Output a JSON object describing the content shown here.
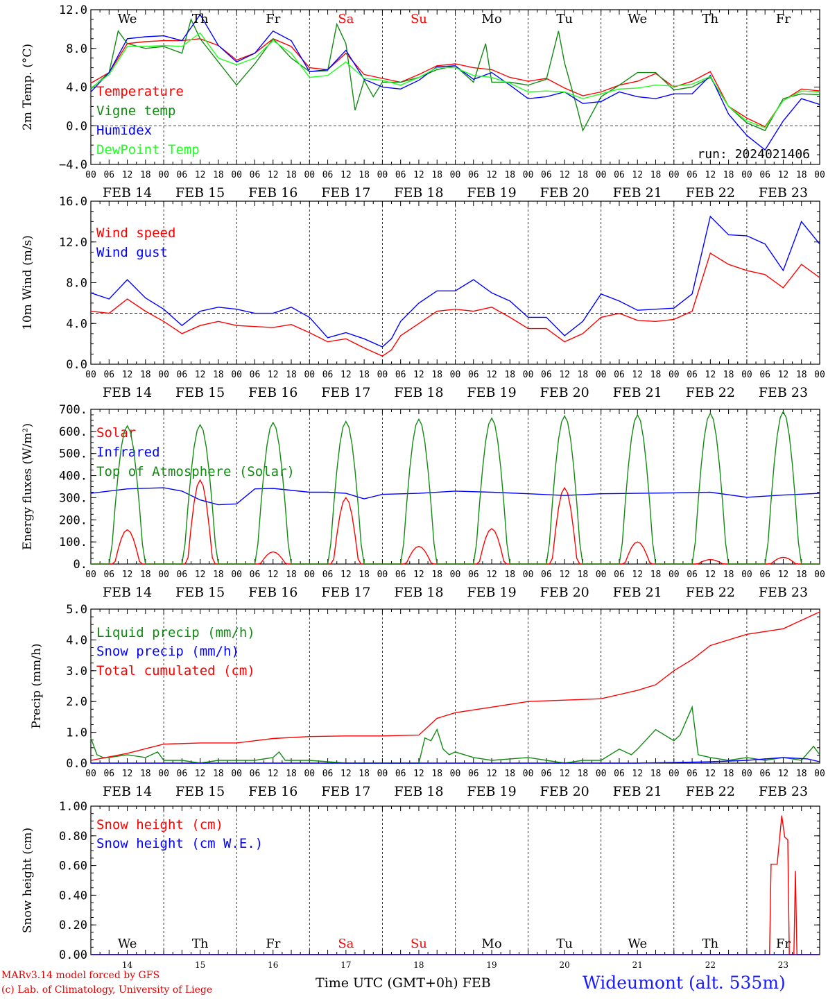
{
  "chart_data": [
    {
      "type": "line",
      "ylabel": "2m Temp. (°C)",
      "ylim": [
        -4,
        12
      ],
      "yticks": [
        "−4.0",
        "0.0",
        "4.0",
        "8.0",
        "12.0"
      ],
      "x_unit": "hours since FEB 14 00 UTC",
      "xlim": [
        0,
        240
      ],
      "reference_line": 0,
      "annotation": "run: 2024021406",
      "series": [
        {
          "name": "Temperature",
          "color": "#ff0000",
          "x": [
            0,
            6,
            12,
            18,
            24,
            30,
            36,
            42,
            48,
            54,
            60,
            66,
            72,
            78,
            84,
            90,
            96,
            102,
            108,
            114,
            120,
            126,
            132,
            138,
            144,
            150,
            156,
            162,
            168,
            174,
            180,
            186,
            192,
            198,
            204,
            210,
            216,
            222,
            228,
            234,
            240
          ],
          "y": [
            4.4,
            5.5,
            8.5,
            8.7,
            8.8,
            8.8,
            9.0,
            8.3,
            6.8,
            7.5,
            9.0,
            8.2,
            6.0,
            5.8,
            7.5,
            5.3,
            4.9,
            4.5,
            5.3,
            6.2,
            6.4,
            6.0,
            5.8,
            5.0,
            4.6,
            4.9,
            3.9,
            3.1,
            3.5,
            4.2,
            4.6,
            5.4,
            4.0,
            4.6,
            5.6,
            2.0,
            0.8,
            -0.1,
            2.6,
            3.8,
            3.6
          ]
        },
        {
          "name": "Vigne temp",
          "color": "#138a13",
          "x": [
            0,
            6,
            9,
            12,
            18,
            24,
            30,
            33,
            36,
            42,
            48,
            54,
            60,
            66,
            72,
            78,
            81,
            84,
            87,
            90,
            93,
            96,
            102,
            108,
            114,
            120,
            126,
            130,
            132,
            138,
            144,
            150,
            154,
            156,
            160,
            162,
            168,
            174,
            180,
            186,
            192,
            198,
            204,
            210,
            216,
            222,
            228,
            234,
            240
          ],
          "y": [
            3.8,
            5.5,
            9.8,
            8.5,
            8.0,
            8.2,
            7.5,
            11.0,
            9.0,
            6.6,
            4.2,
            6.4,
            9.0,
            7.0,
            5.6,
            5.7,
            10.5,
            8.5,
            1.6,
            4.7,
            3.0,
            4.5,
            4.5,
            5.0,
            5.8,
            6.2,
            4.5,
            8.5,
            4.5,
            4.5,
            4.2,
            4.8,
            9.8,
            6.5,
            2.0,
            -0.5,
            3.0,
            4.2,
            5.5,
            5.5,
            3.7,
            4.0,
            5.0,
            2.0,
            0.3,
            -0.5,
            2.8,
            3.3,
            3.2
          ]
        },
        {
          "name": "Humidex",
          "color": "#0000ff",
          "x": [
            0,
            6,
            12,
            18,
            24,
            30,
            36,
            42,
            48,
            54,
            60,
            66,
            72,
            78,
            84,
            90,
            96,
            102,
            108,
            114,
            120,
            126,
            132,
            138,
            144,
            150,
            156,
            162,
            168,
            174,
            180,
            186,
            192,
            198,
            204,
            210,
            216,
            222,
            228,
            234,
            240
          ],
          "y": [
            3.5,
            5.5,
            9.0,
            9.2,
            9.3,
            8.8,
            11.5,
            8.3,
            6.6,
            7.5,
            9.8,
            8.8,
            5.6,
            5.8,
            7.8,
            4.8,
            4.0,
            3.8,
            4.7,
            6.1,
            6.2,
            4.8,
            5.5,
            4.2,
            2.8,
            3.0,
            3.5,
            2.3,
            2.5,
            3.5,
            3.0,
            2.8,
            3.3,
            3.3,
            5.2,
            1.2,
            -1.0,
            -2.5,
            0.5,
            2.8,
            2.2
          ]
        },
        {
          "name": "DewPoint Temp",
          "color": "#22ff22",
          "x": [
            0,
            6,
            12,
            18,
            24,
            30,
            36,
            42,
            48,
            54,
            60,
            66,
            72,
            78,
            84,
            90,
            96,
            102,
            108,
            114,
            120,
            126,
            132,
            138,
            144,
            150,
            156,
            162,
            168,
            174,
            180,
            186,
            192,
            198,
            204,
            210,
            216,
            222,
            228,
            234,
            240
          ],
          "y": [
            3.9,
            5.3,
            8.2,
            8.2,
            8.3,
            8.2,
            9.6,
            7.0,
            6.3,
            7.0,
            8.8,
            7.5,
            5.0,
            5.2,
            6.6,
            4.9,
            4.7,
            4.2,
            5.0,
            6.0,
            6.0,
            5.2,
            5.0,
            4.4,
            3.5,
            3.6,
            3.5,
            2.8,
            3.3,
            3.8,
            3.9,
            4.2,
            4.1,
            4.3,
            5.1,
            2.0,
            0.5,
            -0.2,
            2.6,
            3.6,
            3.5
          ]
        }
      ]
    },
    {
      "type": "line",
      "ylabel": "10m Wind (m/s)",
      "ylim": [
        0,
        16
      ],
      "yticks": [
        "0.0",
        "4.0",
        "8.0",
        "12.0",
        "16.0"
      ],
      "x_unit": "hours since FEB 14 00 UTC",
      "xlim": [
        0,
        240
      ],
      "reference_line": 5,
      "series": [
        {
          "name": "Wind speed",
          "color": "#ff0000",
          "x": [
            0,
            6,
            12,
            18,
            24,
            30,
            36,
            42,
            48,
            54,
            60,
            66,
            72,
            78,
            84,
            90,
            96,
            99,
            102,
            108,
            114,
            120,
            126,
            132,
            138,
            144,
            150,
            156,
            162,
            168,
            174,
            180,
            186,
            192,
            198,
            204,
            210,
            216,
            222,
            228,
            234,
            240
          ],
          "y": [
            5.2,
            5.0,
            6.4,
            5.2,
            4.2,
            3.0,
            3.8,
            4.2,
            3.8,
            3.7,
            3.6,
            3.9,
            3.1,
            2.2,
            2.5,
            1.6,
            0.8,
            1.4,
            2.8,
            4.0,
            5.2,
            5.4,
            5.2,
            5.6,
            4.6,
            3.5,
            3.5,
            2.2,
            3.0,
            4.6,
            5.0,
            4.3,
            4.2,
            4.4,
            5.2,
            10.9,
            9.8,
            9.2,
            8.8,
            7.5,
            9.8,
            8.5
          ]
        },
        {
          "name": "Wind gust",
          "color": "#0000ff",
          "x": [
            0,
            6,
            12,
            18,
            24,
            30,
            36,
            42,
            48,
            54,
            60,
            66,
            72,
            78,
            84,
            90,
            96,
            99,
            102,
            108,
            114,
            120,
            126,
            132,
            138,
            144,
            150,
            156,
            162,
            168,
            174,
            180,
            186,
            192,
            198,
            204,
            210,
            216,
            222,
            228,
            234,
            240
          ],
          "y": [
            7.0,
            6.4,
            8.3,
            6.5,
            5.4,
            3.8,
            5.2,
            5.6,
            5.4,
            5.0,
            5.0,
            5.6,
            4.6,
            2.6,
            3.1,
            2.5,
            1.7,
            2.5,
            4.2,
            6.0,
            7.2,
            7.2,
            8.3,
            7.0,
            6.2,
            4.6,
            4.6,
            2.8,
            4.2,
            6.9,
            6.2,
            5.3,
            5.4,
            5.5,
            6.9,
            14.5,
            12.7,
            12.6,
            11.8,
            9.2,
            14.0,
            11.8
          ]
        }
      ]
    },
    {
      "type": "line",
      "ylabel": "Energy fluxes (W/m²)",
      "ylim": [
        0,
        700
      ],
      "yticks": [
        "0.",
        "100.",
        "200.",
        "300.",
        "400.",
        "500.",
        "600.",
        "700."
      ],
      "x_unit": "hours since FEB 14 00 UTC",
      "xlim": [
        0,
        240
      ],
      "series": [
        {
          "name": "Solar",
          "color": "#ff0000",
          "days_peak": [
            155,
            380,
            55,
            300,
            80,
            160,
            345,
            100,
            20,
            30
          ]
        },
        {
          "name": "Infrared",
          "color": "#0000ff",
          "x": [
            0,
            12,
            24,
            30,
            36,
            42,
            48,
            54,
            60,
            72,
            78,
            84,
            90,
            96,
            108,
            120,
            132,
            144,
            156,
            168,
            180,
            192,
            204,
            216,
            228,
            240
          ],
          "y": [
            320,
            340,
            345,
            330,
            290,
            268,
            272,
            340,
            342,
            325,
            325,
            320,
            295,
            315,
            320,
            330,
            325,
            318,
            310,
            318,
            320,
            322,
            325,
            302,
            312,
            320
          ]
        },
        {
          "name": "Top of Atmosphere (Solar)",
          "color": "#138a13",
          "days_peak": [
            625,
            630,
            640,
            645,
            655,
            660,
            670,
            675,
            682,
            690
          ]
        }
      ]
    },
    {
      "type": "line",
      "ylabel": "Precip (mm/h)",
      "ylim": [
        0,
        5.5
      ],
      "yticks": [
        "0.0",
        "1.0",
        "2.0",
        "3.0",
        "4.0",
        "5.0"
      ],
      "x_unit": "hours since FEB 14 00 UTC",
      "xlim": [
        0,
        240
      ],
      "series": [
        {
          "name": "Liquid precip (mm/h)",
          "color": "#138a13",
          "x": [
            0,
            2,
            4,
            6,
            12,
            18,
            22,
            24,
            30,
            36,
            42,
            48,
            54,
            60,
            62,
            64,
            72,
            84,
            96,
            108,
            110,
            112,
            114,
            116,
            118,
            120,
            126,
            132,
            144,
            150,
            156,
            162,
            168,
            174,
            178,
            180,
            186,
            192,
            194,
            198,
            200,
            204,
            210,
            216,
            222,
            228,
            234,
            238,
            240
          ],
          "y": [
            0.9,
            0.3,
            0.2,
            0.2,
            0.3,
            0.2,
            0.4,
            0.1,
            0.1,
            0.0,
            0.1,
            0.1,
            0.1,
            0.2,
            0.4,
            0.1,
            0.1,
            0.0,
            0.0,
            0.0,
            0.9,
            0.8,
            1.2,
            0.5,
            0.3,
            0.4,
            0.2,
            0.1,
            0.2,
            0.1,
            0.0,
            0.1,
            0.1,
            0.5,
            0.3,
            0.5,
            1.2,
            0.8,
            1.0,
            2.0,
            0.3,
            0.2,
            0.1,
            0.2,
            0.1,
            0.2,
            0.1,
            0.6,
            0.3
          ]
        },
        {
          "name": "Snow precip (mm/h)",
          "color": "#0000ff",
          "x": [
            0,
            180,
            204,
            216,
            228,
            236,
            240
          ],
          "y": [
            0,
            0,
            0.05,
            0.1,
            0.2,
            0.15,
            0.05
          ]
        },
        {
          "name": "Total cumulated (cm)",
          "color": "#ff0000",
          "x": [
            0,
            12,
            24,
            36,
            48,
            60,
            72,
            84,
            96,
            108,
            114,
            120,
            132,
            144,
            156,
            168,
            180,
            186,
            192,
            198,
            204,
            216,
            228,
            240
          ],
          "y": [
            0.1,
            0.35,
            0.68,
            0.72,
            0.72,
            0.88,
            0.95,
            0.97,
            0.97,
            1.0,
            1.6,
            1.8,
            2.0,
            2.2,
            2.25,
            2.3,
            2.6,
            2.8,
            3.3,
            3.7,
            4.2,
            4.6,
            4.8,
            5.4
          ]
        }
      ]
    },
    {
      "type": "line",
      "ylabel": "Snow height (cm)",
      "ylim": [
        0,
        1.1
      ],
      "yticks": [
        "0.00",
        "0.20",
        "0.40",
        "0.60",
        "0.80",
        "1.00"
      ],
      "x_unit": "hours since FEB 14 00 UTC",
      "xlim": [
        0,
        240
      ],
      "series": [
        {
          "name": "Snow height (cm)",
          "color": "#ff0000",
          "x": [
            0,
            223.5,
            224,
            225.5,
            226,
            227.5,
            228.5,
            229.5,
            230,
            230.5,
            231.5,
            232,
            232.5,
            233.5,
            240
          ],
          "y": [
            0,
            0,
            0.67,
            0.67,
            0.67,
            1.03,
            0.87,
            0.85,
            0,
            0,
            0,
            0.62,
            0,
            0,
            0
          ]
        },
        {
          "name": "Snow height (cm W.E.)",
          "color": "#0000ff",
          "x": [
            0,
            240
          ],
          "y": [
            0,
            0
          ]
        }
      ]
    }
  ],
  "x_tick_hours": [
    "00",
    "06",
    "12",
    "18"
  ],
  "x_end_label": "00",
  "dates": [
    "FEB 14",
    "FEB 15",
    "FEB 16",
    "FEB 17",
    "FEB 18",
    "FEB 19",
    "FEB 20",
    "FEB 21",
    "FEB 22",
    "FEB 23"
  ],
  "weekdays": [
    "We",
    "Th",
    "Fr",
    "Sa",
    "Su",
    "Mo",
    "Tu",
    "We",
    "Th",
    "Fr"
  ],
  "weekend_color": "#ff0000",
  "day_numbers": [
    "14",
    "15",
    "16",
    "17",
    "18",
    "19",
    "20",
    "21",
    "22",
    "23"
  ],
  "footer": {
    "model": "MARv3.14 model forced by GFS",
    "copyright": "(c) Lab. of Climatology, University of Liege",
    "axis_title": "Time UTC (GMT+0h)",
    "month": "FEB",
    "station": "Wideumont (alt. 535m)"
  }
}
